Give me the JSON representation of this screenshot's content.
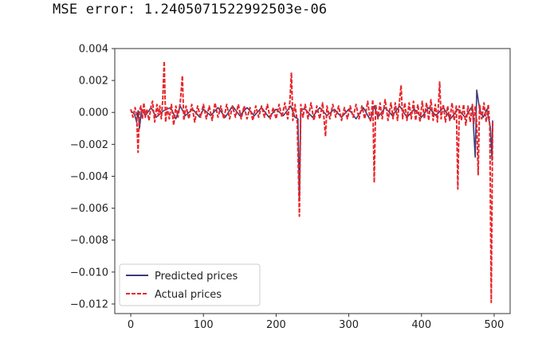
{
  "output": {
    "mse_line": "MSE error: 1.2405071522992503e-06"
  },
  "chart_data": {
    "type": "line",
    "title": "",
    "xlabel": "",
    "ylabel": "",
    "xlim": [
      -22,
      522
    ],
    "ylim": [
      -0.0126,
      0.004
    ],
    "x_ticks": [
      0,
      100,
      200,
      300,
      400,
      500
    ],
    "x_tick_labels": [
      "0",
      "100",
      "200",
      "300",
      "400",
      "500"
    ],
    "y_ticks": [
      0.004,
      0.002,
      0.0,
      -0.002,
      -0.004,
      -0.006,
      -0.008,
      -0.01,
      -0.012
    ],
    "y_tick_labels": [
      "0.004",
      "0.002",
      "0.000",
      "−0.002",
      "−0.004",
      "−0.006",
      "−0.008",
      "−0.010",
      "−0.012"
    ],
    "grid": false,
    "legend_position": "lower-left",
    "series": [
      {
        "name": "Predicted prices",
        "color": "#3b3b7a",
        "style": "solid",
        "points": [
          [
            0,
            0.0001
          ],
          [
            5,
            -0.0001
          ],
          [
            8,
            -0.0006
          ],
          [
            10,
            0.0001
          ],
          [
            12,
            -0.001
          ],
          [
            15,
            0.0002
          ],
          [
            20,
            -0.0002
          ],
          [
            28,
            0.0003
          ],
          [
            35,
            -0.0003
          ],
          [
            45,
            0.0001
          ],
          [
            55,
            0.0003
          ],
          [
            62,
            -0.0004
          ],
          [
            68,
            0.0004
          ],
          [
            75,
            -0.0002
          ],
          [
            85,
            0.0002
          ],
          [
            95,
            -0.0003
          ],
          [
            100,
            0.0002
          ],
          [
            110,
            -0.0002
          ],
          [
            120,
            0.0003
          ],
          [
            130,
            -0.0003
          ],
          [
            140,
            0.0004
          ],
          [
            150,
            -0.0002
          ],
          [
            160,
            0.0003
          ],
          [
            170,
            -0.0002
          ],
          [
            180,
            0.0003
          ],
          [
            190,
            -0.0003
          ],
          [
            200,
            0.0002
          ],
          [
            210,
            -0.0002
          ],
          [
            220,
            0.0004
          ],
          [
            226,
            -0.0003
          ],
          [
            230,
            -0.0004
          ],
          [
            232,
            -0.0055
          ],
          [
            234,
            0.0002
          ],
          [
            240,
            0.0002
          ],
          [
            250,
            -0.0003
          ],
          [
            260,
            0.0003
          ],
          [
            270,
            -0.0002
          ],
          [
            280,
            0.0002
          ],
          [
            290,
            -0.0003
          ],
          [
            300,
            0.0002
          ],
          [
            310,
            -0.0004
          ],
          [
            320,
            0.0003
          ],
          [
            330,
            -0.0005
          ],
          [
            335,
            0.0004
          ],
          [
            340,
            -0.0003
          ],
          [
            350,
            0.0003
          ],
          [
            360,
            -0.0002
          ],
          [
            370,
            0.0004
          ],
          [
            380,
            -0.0003
          ],
          [
            390,
            0.0002
          ],
          [
            400,
            -0.0003
          ],
          [
            410,
            0.0003
          ],
          [
            420,
            -0.0002
          ],
          [
            430,
            0.0003
          ],
          [
            440,
            -0.0004
          ],
          [
            450,
            0.0002
          ],
          [
            460,
            -0.0003
          ],
          [
            470,
            0.0004
          ],
          [
            474,
            -0.0028
          ],
          [
            476,
            0.0014
          ],
          [
            480,
            0.0002
          ],
          [
            485,
            -0.0003
          ],
          [
            490,
            0.0002
          ],
          [
            495,
            -0.001
          ],
          [
            497,
            -0.003
          ],
          [
            498,
            -0.0005
          ]
        ]
      },
      {
        "name": "Actual prices",
        "color": "#e8262a",
        "style": "dashed",
        "points": [
          [
            0,
            0.0002
          ],
          [
            3,
            -0.0003
          ],
          [
            6,
            0.0003
          ],
          [
            8,
            -0.0002
          ],
          [
            10,
            -0.0025
          ],
          [
            12,
            0.0001
          ],
          [
            14,
            0.0004
          ],
          [
            16,
            -0.0004
          ],
          [
            18,
            0.0006
          ],
          [
            20,
            -0.0003
          ],
          [
            22,
            0.0002
          ],
          [
            25,
            -0.0005
          ],
          [
            28,
            0.0004
          ],
          [
            30,
            0.0007
          ],
          [
            33,
            -0.0006
          ],
          [
            36,
            0.0005
          ],
          [
            38,
            -0.0002
          ],
          [
            40,
            0.0004
          ],
          [
            42,
            -0.0004
          ],
          [
            44,
            0.0008
          ],
          [
            46,
            0.0032
          ],
          [
            48,
            -0.0006
          ],
          [
            50,
            0.0003
          ],
          [
            53,
            -0.0004
          ],
          [
            56,
            0.0005
          ],
          [
            59,
            -0.0008
          ],
          [
            62,
            0.0004
          ],
          [
            65,
            -0.0003
          ],
          [
            68,
            0.0006
          ],
          [
            71,
            0.0023
          ],
          [
            73,
            -0.0005
          ],
          [
            76,
            0.0004
          ],
          [
            80,
            -0.0004
          ],
          [
            84,
            0.0005
          ],
          [
            88,
            -0.0006
          ],
          [
            92,
            0.0004
          ],
          [
            96,
            -0.0003
          ],
          [
            100,
            0.0005
          ],
          [
            104,
            -0.0004
          ],
          [
            108,
            0.0004
          ],
          [
            112,
            -0.0005
          ],
          [
            116,
            0.0006
          ],
          [
            120,
            -0.0003
          ],
          [
            124,
            0.0004
          ],
          [
            128,
            -0.0004
          ],
          [
            132,
            0.0005
          ],
          [
            136,
            -0.0004
          ],
          [
            140,
            0.0004
          ],
          [
            144,
            -0.0003
          ],
          [
            148,
            0.0005
          ],
          [
            152,
            -0.0004
          ],
          [
            156,
            0.0004
          ],
          [
            160,
            -0.0004
          ],
          [
            164,
            0.0003
          ],
          [
            168,
            -0.0005
          ],
          [
            172,
            0.0004
          ],
          [
            176,
            -0.0003
          ],
          [
            180,
            0.0004
          ],
          [
            184,
            -0.0003
          ],
          [
            188,
            0.0005
          ],
          [
            192,
            -0.0004
          ],
          [
            196,
            0.0003
          ],
          [
            200,
            -0.0004
          ],
          [
            204,
            0.0005
          ],
          [
            208,
            -0.0003
          ],
          [
            212,
            0.0006
          ],
          [
            216,
            -0.0004
          ],
          [
            219,
            0.0007
          ],
          [
            221,
            0.0025
          ],
          [
            223,
            -0.0005
          ],
          [
            226,
            0.0005
          ],
          [
            229,
            -0.0006
          ],
          [
            232,
            -0.0065
          ],
          [
            234,
            0.0005
          ],
          [
            237,
            -0.0003
          ],
          [
            240,
            0.0005
          ],
          [
            244,
            -0.0004
          ],
          [
            248,
            0.0006
          ],
          [
            252,
            -0.0005
          ],
          [
            256,
            0.0004
          ],
          [
            260,
            -0.0004
          ],
          [
            264,
            0.0006
          ],
          [
            268,
            -0.0015
          ],
          [
            270,
            0.0004
          ],
          [
            274,
            -0.0004
          ],
          [
            278,
            0.0005
          ],
          [
            282,
            -0.0003
          ],
          [
            286,
            0.0004
          ],
          [
            290,
            -0.0005
          ],
          [
            294,
            0.0003
          ],
          [
            298,
            -0.0004
          ],
          [
            302,
            0.0004
          ],
          [
            306,
            -0.0003
          ],
          [
            310,
            0.0005
          ],
          [
            314,
            -0.0004
          ],
          [
            318,
            0.0004
          ],
          [
            322,
            -0.0004
          ],
          [
            326,
            0.0007
          ],
          [
            330,
            -0.0006
          ],
          [
            333,
            0.0008
          ],
          [
            335,
            -0.0044
          ],
          [
            337,
            0.0005
          ],
          [
            340,
            -0.0004
          ],
          [
            343,
            0.0006
          ],
          [
            346,
            -0.0004
          ],
          [
            350,
            0.0008
          ],
          [
            354,
            -0.0005
          ],
          [
            358,
            0.0006
          ],
          [
            361,
            -0.0004
          ],
          [
            364,
            0.0006
          ],
          [
            367,
            -0.0005
          ],
          [
            370,
            0.0008
          ],
          [
            372,
            0.0017
          ],
          [
            374,
            -0.0004
          ],
          [
            377,
            0.0006
          ],
          [
            380,
            -0.0005
          ],
          [
            383,
            0.0006
          ],
          [
            386,
            -0.0004
          ],
          [
            389,
            0.0007
          ],
          [
            392,
            -0.0005
          ],
          [
            395,
            0.0005
          ],
          [
            398,
            -0.0006
          ],
          [
            401,
            0.0007
          ],
          [
            404,
            -0.0004
          ],
          [
            407,
            0.0006
          ],
          [
            410,
            -0.0005
          ],
          [
            413,
            0.0008
          ],
          [
            416,
            -0.0005
          ],
          [
            419,
            0.0005
          ],
          [
            422,
            -0.0006
          ],
          [
            425,
            0.0019
          ],
          [
            427,
            -0.0004
          ],
          [
            430,
            0.0005
          ],
          [
            433,
            -0.0006
          ],
          [
            436,
            0.0004
          ],
          [
            439,
            -0.0005
          ],
          [
            442,
            0.0006
          ],
          [
            445,
            -0.0005
          ],
          [
            448,
            0.0004
          ],
          [
            450,
            -0.0048
          ],
          [
            452,
            0.0004
          ],
          [
            455,
            -0.0005
          ],
          [
            458,
            0.0005
          ],
          [
            461,
            -0.0008
          ],
          [
            464,
            0.0004
          ],
          [
            467,
            -0.0006
          ],
          [
            470,
            0.0005
          ],
          [
            472,
            -0.0007
          ],
          [
            474,
            0.0004
          ],
          [
            476,
            -0.0006
          ],
          [
            478,
            -0.0039
          ],
          [
            480,
            0.0005
          ],
          [
            483,
            -0.0004
          ],
          [
            486,
            0.0006
          ],
          [
            489,
            -0.0006
          ],
          [
            492,
            0.0005
          ],
          [
            494,
            -0.0009
          ],
          [
            496,
            -0.0119
          ],
          [
            498,
            -0.0006
          ]
        ]
      }
    ]
  }
}
